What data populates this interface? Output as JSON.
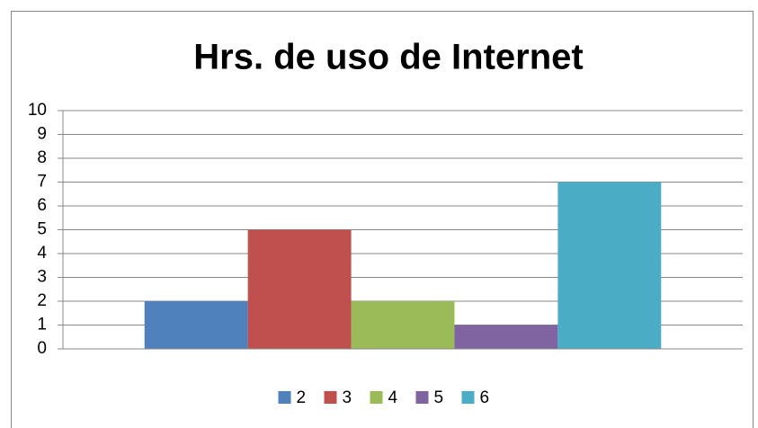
{
  "chart_data": {
    "type": "bar",
    "title": "Hrs. de uso de Internet",
    "series": [
      {
        "name": "2",
        "color": "#4f81bd",
        "values": [
          2
        ]
      },
      {
        "name": "3",
        "color": "#c0504d",
        "values": [
          5
        ]
      },
      {
        "name": "4",
        "color": "#9bbb59",
        "values": [
          2
        ]
      },
      {
        "name": "5",
        "color": "#8064a2",
        "values": [
          1
        ]
      },
      {
        "name": "6",
        "color": "#4bacc6",
        "values": [
          7
        ]
      }
    ],
    "ylim": [
      0,
      10
    ],
    "yticks": [
      0,
      1,
      2,
      3,
      4,
      5,
      6,
      7,
      8,
      9,
      10
    ],
    "grid": true,
    "legend": "bottom"
  }
}
